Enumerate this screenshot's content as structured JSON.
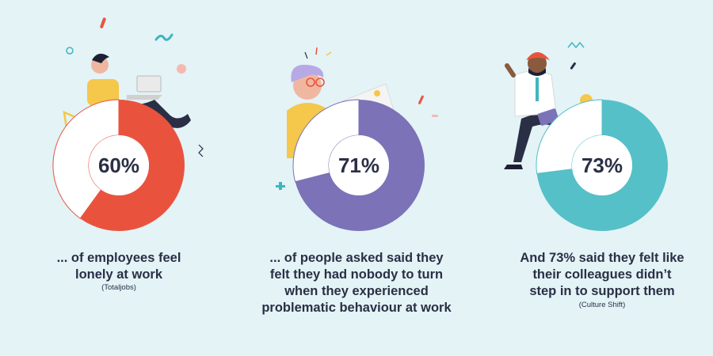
{
  "chart_data": [
    {
      "type": "pie",
      "style": "donut",
      "values": [
        60,
        40
      ],
      "labels": [
        "60%",
        ""
      ],
      "center_label": "60%",
      "caption": [
        "... of employees feel",
        "lonely at work"
      ],
      "source": "(Totaljobs)",
      "colors": {
        "filled": "#e9533e",
        "rest": "#ffffff"
      }
    },
    {
      "type": "pie",
      "style": "donut",
      "values": [
        71,
        29
      ],
      "labels": [
        "71%",
        ""
      ],
      "center_label": "71%",
      "caption": [
        "... of people asked said they",
        "felt they had nobody to turn",
        "when they experienced",
        "problematic behaviour at work"
      ],
      "source": "",
      "colors": {
        "filled": "#7b72b8",
        "rest": "#ffffff"
      }
    },
    {
      "type": "pie",
      "style": "donut",
      "values": [
        73,
        27
      ],
      "labels": [
        "73%",
        ""
      ],
      "center_label": "73%",
      "caption": [
        "And 73% said they felt like",
        "their colleagues didn’t",
        "step in to support them"
      ],
      "source": "(Culture Shift)",
      "colors": {
        "filled": "#55c0c8",
        "rest": "#ffffff"
      }
    }
  ],
  "colors": {
    "background": "#e3f3f6",
    "text": "#2a2f45",
    "accent_teal": "#3fb5bf",
    "accent_red": "#e9533e",
    "accent_yellow": "#f5c74a",
    "accent_purple": "#7b72b8"
  }
}
